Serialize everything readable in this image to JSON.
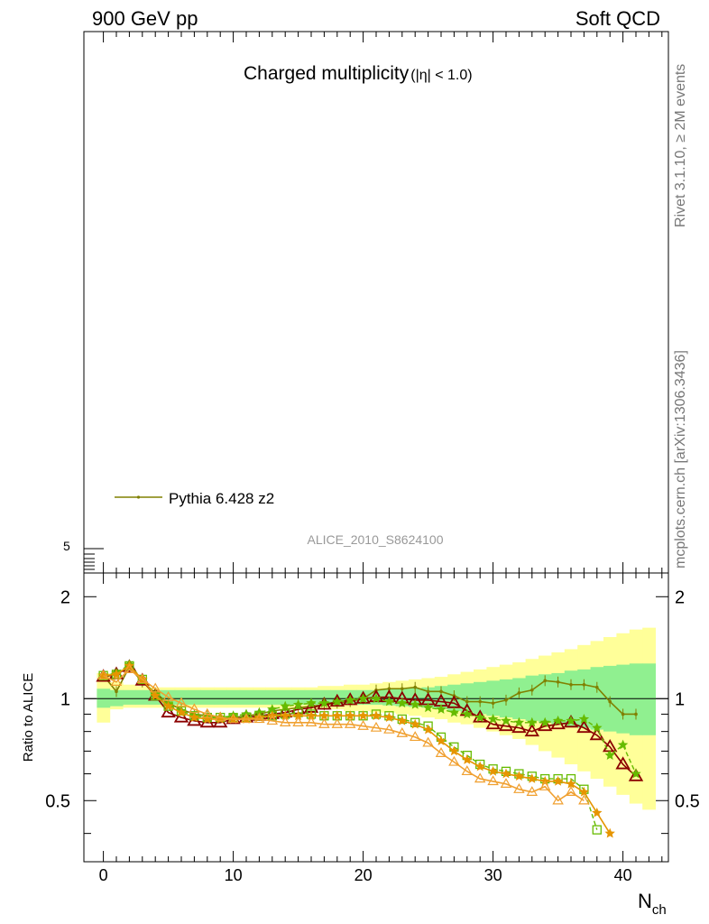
{
  "header": {
    "left": "900 GeV pp",
    "right": "Soft QCD"
  },
  "side_labels": {
    "rivet": "Rivet 3.1.10, ≥ 2M events",
    "mcplots": "mcplots.cern.ch [arXiv:1306.3436]"
  },
  "main_panel": {
    "title": "Charged multiplicity",
    "title_suffix": "(|η| < 1.0)",
    "y_tick": "5",
    "legend_label": "Pythia 6.428 z2",
    "analysis_id": "ALICE_2010_S8624100"
  },
  "colors": {
    "olive": "#808000",
    "darkred": "#8b0000",
    "orange": "#e69500",
    "lightorange": "#f0a030",
    "lime": "#66bb00",
    "green_band": "#90f090",
    "yellow_band": "#ffff99"
  },
  "chart_data": {
    "type": "line",
    "xlabel": "N",
    "xlabel_sub": "ch",
    "ylabel": "Ratio to ALICE",
    "xlim": [
      -1.5,
      43.5
    ],
    "ylim": [
      0.33,
      2.35
    ],
    "y_scale": "log",
    "x_ticks": [
      0,
      10,
      20,
      30,
      40
    ],
    "y_ticks": [
      {
        "value": 0.5,
        "label": "0.5"
      },
      {
        "value": 1,
        "label": "1"
      },
      {
        "value": 2,
        "label": "2"
      }
    ],
    "reference_line": 1,
    "band_green": [
      [
        0.94,
        1.07
      ],
      [
        0.95,
        1.06
      ],
      [
        0.96,
        1.06
      ],
      [
        0.96,
        1.06
      ],
      [
        0.96,
        1.06
      ],
      [
        0.96,
        1.06
      ],
      [
        0.96,
        1.06
      ],
      [
        0.96,
        1.06
      ],
      [
        0.96,
        1.06
      ],
      [
        0.96,
        1.06
      ],
      [
        0.96,
        1.06
      ],
      [
        0.96,
        1.06
      ],
      [
        0.96,
        1.06
      ],
      [
        0.96,
        1.06
      ],
      [
        0.96,
        1.06
      ],
      [
        0.96,
        1.06
      ],
      [
        0.96,
        1.06
      ],
      [
        0.96,
        1.06
      ],
      [
        0.96,
        1.06
      ],
      [
        0.96,
        1.06
      ],
      [
        0.96,
        1.06
      ],
      [
        0.96,
        1.06
      ],
      [
        0.955,
        1.065
      ],
      [
        0.95,
        1.07
      ],
      [
        0.945,
        1.075
      ],
      [
        0.94,
        1.08
      ],
      [
        0.93,
        1.09
      ],
      [
        0.92,
        1.1
      ],
      [
        0.91,
        1.11
      ],
      [
        0.9,
        1.12
      ],
      [
        0.89,
        1.13
      ],
      [
        0.88,
        1.14
      ],
      [
        0.87,
        1.15
      ],
      [
        0.86,
        1.17
      ],
      [
        0.85,
        1.18
      ],
      [
        0.84,
        1.19
      ],
      [
        0.83,
        1.21
      ],
      [
        0.82,
        1.22
      ],
      [
        0.81,
        1.24
      ],
      [
        0.8,
        1.25
      ],
      [
        0.79,
        1.26
      ],
      [
        0.78,
        1.27
      ],
      [
        0.78,
        1.27
      ]
    ],
    "band_yellow": [
      [
        0.85,
        1.19
      ],
      [
        0.93,
        1.12
      ],
      [
        0.94,
        1.1
      ],
      [
        0.94,
        1.09
      ],
      [
        0.94,
        1.08
      ],
      [
        0.94,
        1.08
      ],
      [
        0.94,
        1.08
      ],
      [
        0.94,
        1.08
      ],
      [
        0.94,
        1.08
      ],
      [
        0.94,
        1.08
      ],
      [
        0.94,
        1.08
      ],
      [
        0.94,
        1.08
      ],
      [
        0.94,
        1.08
      ],
      [
        0.94,
        1.08
      ],
      [
        0.93,
        1.08
      ],
      [
        0.93,
        1.08
      ],
      [
        0.93,
        1.08
      ],
      [
        0.93,
        1.09
      ],
      [
        0.93,
        1.09
      ],
      [
        0.92,
        1.1
      ],
      [
        0.92,
        1.1
      ],
      [
        0.91,
        1.11
      ],
      [
        0.91,
        1.12
      ],
      [
        0.9,
        1.13
      ],
      [
        0.89,
        1.14
      ],
      [
        0.88,
        1.15
      ],
      [
        0.87,
        1.16
      ],
      [
        0.85,
        1.18
      ],
      [
        0.84,
        1.2
      ],
      [
        0.82,
        1.22
      ],
      [
        0.8,
        1.24
      ],
      [
        0.78,
        1.26
      ],
      [
        0.76,
        1.28
      ],
      [
        0.73,
        1.31
      ],
      [
        0.7,
        1.34
      ],
      [
        0.67,
        1.37
      ],
      [
        0.64,
        1.4
      ],
      [
        0.61,
        1.44
      ],
      [
        0.58,
        1.48
      ],
      [
        0.55,
        1.52
      ],
      [
        0.52,
        1.56
      ],
      [
        0.49,
        1.6
      ],
      [
        0.47,
        1.62
      ]
    ],
    "series": [
      {
        "name": "Pythia 6.428 z2",
        "color": "olive",
        "marker": "dot",
        "dashed": false,
        "x": [
          0,
          1,
          2,
          3,
          4,
          5,
          6,
          7,
          8,
          9,
          10,
          11,
          12,
          13,
          14,
          15,
          16,
          17,
          18,
          19,
          20,
          21,
          22,
          23,
          24,
          25,
          26,
          27,
          28,
          29,
          30,
          31,
          32,
          33,
          34,
          35,
          36,
          37,
          38,
          39,
          40,
          41
        ],
        "y": [
          1.17,
          1.05,
          1.24,
          1.12,
          1.04,
          0.97,
          0.93,
          0.9,
          0.89,
          0.88,
          0.88,
          0.89,
          0.9,
          0.92,
          0.93,
          0.94,
          0.95,
          0.96,
          0.97,
          0.98,
          1.0,
          1.06,
          1.07,
          1.07,
          1.08,
          1.05,
          1.05,
          1.02,
          0.98,
          0.98,
          0.97,
          0.99,
          1.04,
          1.06,
          1.13,
          1.12,
          1.1,
          1.1,
          1.08,
          0.98,
          0.9,
          0.9
        ]
      },
      {
        "color": "darkred",
        "marker": "triangle",
        "dashed": false,
        "x": [
          0,
          1,
          2,
          3,
          4,
          5,
          6,
          7,
          8,
          9,
          10,
          11,
          12,
          13,
          14,
          15,
          16,
          17,
          18,
          19,
          20,
          21,
          22,
          23,
          24,
          25,
          26,
          27,
          28,
          29,
          30,
          31,
          32,
          33,
          34,
          35,
          36,
          37,
          38,
          39,
          40,
          41
        ],
        "y": [
          1.16,
          1.18,
          1.24,
          1.13,
          1.02,
          0.91,
          0.88,
          0.86,
          0.85,
          0.85,
          0.87,
          0.88,
          0.89,
          0.9,
          0.91,
          0.93,
          0.94,
          0.96,
          0.98,
          0.99,
          1.0,
          1.01,
          1.01,
          1.0,
          0.99,
          0.99,
          0.98,
          0.97,
          0.92,
          0.88,
          0.84,
          0.83,
          0.82,
          0.8,
          0.83,
          0.84,
          0.85,
          0.82,
          0.78,
          0.72,
          0.64,
          0.59
        ]
      },
      {
        "color": "lime",
        "marker": "star",
        "dashed": true,
        "x": [
          0,
          1,
          2,
          3,
          4,
          5,
          6,
          7,
          8,
          9,
          10,
          11,
          12,
          13,
          14,
          15,
          16,
          17,
          18,
          19,
          20,
          21,
          22,
          23,
          24,
          25,
          26,
          27,
          28,
          29,
          30,
          31,
          32,
          33,
          34,
          35,
          36,
          37,
          38,
          39,
          40,
          41
        ],
        "y": [
          1.17,
          1.19,
          1.26,
          1.14,
          1.03,
          0.96,
          0.92,
          0.89,
          0.88,
          0.88,
          0.89,
          0.9,
          0.91,
          0.93,
          0.95,
          0.96,
          0.97,
          0.97,
          0.98,
          0.99,
          1.0,
          1.0,
          0.98,
          0.97,
          0.96,
          0.94,
          0.93,
          0.91,
          0.9,
          0.88,
          0.87,
          0.86,
          0.85,
          0.85,
          0.85,
          0.86,
          0.86,
          0.87,
          0.82,
          0.68,
          0.73,
          0.6
        ]
      },
      {
        "color": "lime",
        "marker": "square",
        "dashed": true,
        "x": [
          0,
          1,
          2,
          3,
          4,
          5,
          6,
          7,
          8,
          9,
          10,
          11,
          12,
          13,
          14,
          15,
          16,
          17,
          18,
          19,
          20,
          21,
          22,
          23,
          24,
          25,
          26,
          27,
          28,
          29,
          30,
          31,
          32,
          33,
          34,
          35,
          36,
          37,
          38
        ],
        "y": [
          1.17,
          1.18,
          1.25,
          1.14,
          1.02,
          0.95,
          0.92,
          0.89,
          0.88,
          0.88,
          0.88,
          0.88,
          0.89,
          0.89,
          0.9,
          0.91,
          0.9,
          0.89,
          0.89,
          0.89,
          0.89,
          0.9,
          0.89,
          0.87,
          0.85,
          0.83,
          0.77,
          0.72,
          0.68,
          0.64,
          0.62,
          0.61,
          0.6,
          0.59,
          0.58,
          0.58,
          0.58,
          0.54,
          0.41
        ]
      },
      {
        "color": "orange",
        "marker": "star",
        "dashed": false,
        "x": [
          0,
          1,
          2,
          3,
          4,
          5,
          6,
          7,
          8,
          9,
          10,
          11,
          12,
          13,
          14,
          15,
          16,
          17,
          18,
          19,
          20,
          21,
          22,
          23,
          24,
          25,
          26,
          27,
          28,
          29,
          30,
          31,
          32,
          33,
          34,
          35,
          36,
          37,
          38,
          39
        ],
        "y": [
          1.17,
          1.18,
          1.25,
          1.14,
          1.02,
          0.95,
          0.91,
          0.88,
          0.87,
          0.87,
          0.87,
          0.87,
          0.88,
          0.89,
          0.89,
          0.89,
          0.89,
          0.89,
          0.89,
          0.89,
          0.89,
          0.89,
          0.88,
          0.86,
          0.84,
          0.81,
          0.75,
          0.7,
          0.66,
          0.63,
          0.61,
          0.6,
          0.59,
          0.58,
          0.57,
          0.57,
          0.56,
          0.53,
          0.46,
          0.4
        ]
      },
      {
        "color": "lightorange",
        "marker": "open-triangle",
        "dashed": false,
        "x": [
          0,
          1,
          2,
          3,
          4,
          5,
          6,
          7,
          8,
          9,
          10,
          11,
          12,
          13,
          14,
          15,
          16,
          17,
          18,
          19,
          20,
          21,
          22,
          23,
          24,
          25,
          26,
          27,
          28,
          29,
          30,
          31,
          32,
          33,
          34,
          35,
          36,
          37
        ],
        "y": [
          1.17,
          1.12,
          1.22,
          1.14,
          1.07,
          1.01,
          0.97,
          0.93,
          0.9,
          0.88,
          0.87,
          0.87,
          0.87,
          0.86,
          0.85,
          0.85,
          0.85,
          0.84,
          0.84,
          0.84,
          0.83,
          0.82,
          0.81,
          0.79,
          0.77,
          0.74,
          0.69,
          0.65,
          0.61,
          0.58,
          0.57,
          0.56,
          0.54,
          0.53,
          0.55,
          0.5,
          0.53,
          0.5
        ]
      }
    ]
  }
}
